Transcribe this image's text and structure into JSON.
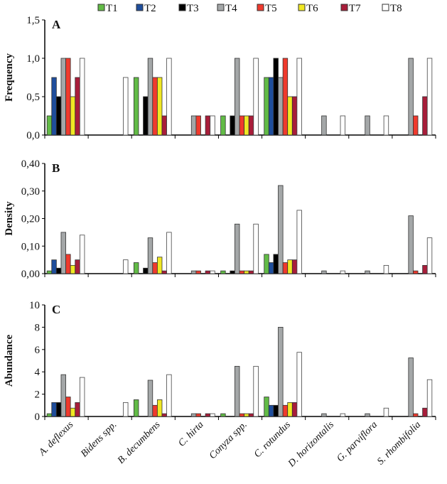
{
  "chart_data": {
    "type": "bar",
    "categories": [
      "A. deflexus",
      "Bidens spp.",
      "B. decumbens",
      "C. hirta",
      "Conyza spp.",
      "C. rotundus",
      "D. horizontalis",
      "G. parviflora",
      "S. rhombifolia"
    ],
    "legend": {
      "placement": "top",
      "entries": [
        "T1",
        "T2",
        "T3",
        "T4",
        "T5",
        "T6",
        "T7",
        "T8"
      ],
      "colors": [
        "#62bb46",
        "#1f4e9c",
        "#000000",
        "#a4a7a8",
        "#ef3a2d",
        "#f0e823",
        "#a81d3a",
        "#ffffff"
      ]
    },
    "panels": [
      {
        "label": "A",
        "ylabel": "Frequency",
        "ylim": [
          0,
          1.5
        ],
        "yticks": [
          "0,0",
          "0,5",
          "1,0",
          "1,5"
        ],
        "ytick_values": [
          0,
          0.5,
          1.0,
          1.5
        ],
        "series": [
          {
            "name": "T1",
            "values": [
              0.25,
              0,
              0.75,
              0,
              0.25,
              0.75,
              0,
              0,
              0
            ]
          },
          {
            "name": "T2",
            "values": [
              0.75,
              0,
              0,
              0,
              0,
              0.75,
              0,
              0,
              0
            ]
          },
          {
            "name": "T3",
            "values": [
              0.5,
              0,
              0.5,
              0,
              0.25,
              1.0,
              0,
              0,
              0
            ]
          },
          {
            "name": "T4",
            "values": [
              1.0,
              0,
              1.0,
              0.25,
              1.0,
              0.75,
              0.25,
              0.25,
              1.0
            ]
          },
          {
            "name": "T5",
            "values": [
              1.0,
              0,
              0.75,
              0.25,
              0.25,
              1.0,
              0,
              0,
              0.25
            ]
          },
          {
            "name": "T6",
            "values": [
              0.5,
              0,
              0.75,
              0,
              0.25,
              0.5,
              0,
              0,
              0
            ]
          },
          {
            "name": "T7",
            "values": [
              0.75,
              0,
              0.25,
              0.25,
              0.25,
              0.5,
              0,
              0,
              0.5
            ]
          },
          {
            "name": "T8",
            "values": [
              1.0,
              0.75,
              1.0,
              0.25,
              1.0,
              1.0,
              0.25,
              0.25,
              1.0
            ]
          }
        ]
      },
      {
        "label": "B",
        "ylabel": "Density",
        "ylim": [
          0,
          0.4
        ],
        "yticks": [
          "0,00",
          "0,10",
          "0,20",
          "0,30",
          "0,40"
        ],
        "ytick_values": [
          0,
          0.1,
          0.2,
          0.3,
          0.4
        ],
        "series": [
          {
            "name": "T1",
            "values": [
              0.01,
              0,
              0.04,
              0,
              0.01,
              0.07,
              0,
              0,
              0
            ]
          },
          {
            "name": "T2",
            "values": [
              0.05,
              0,
              0,
              0,
              0,
              0.04,
              0,
              0,
              0
            ]
          },
          {
            "name": "T3",
            "values": [
              0.02,
              0,
              0.02,
              0,
              0.01,
              0.07,
              0,
              0,
              0
            ]
          },
          {
            "name": "T4",
            "values": [
              0.15,
              0,
              0.13,
              0.01,
              0.18,
              0.32,
              0.01,
              0.01,
              0.21
            ]
          },
          {
            "name": "T5",
            "values": [
              0.07,
              0,
              0.04,
              0.01,
              0.01,
              0.04,
              0,
              0,
              0.01
            ]
          },
          {
            "name": "T6",
            "values": [
              0.03,
              0,
              0.06,
              0,
              0.01,
              0.05,
              0,
              0,
              0
            ]
          },
          {
            "name": "T7",
            "values": [
              0.05,
              0,
              0.01,
              0.01,
              0.01,
              0.05,
              0,
              0,
              0.03
            ]
          },
          {
            "name": "T8",
            "values": [
              0.14,
              0.05,
              0.15,
              0.01,
              0.18,
              0.23,
              0.01,
              0.03,
              0.13
            ]
          }
        ]
      },
      {
        "label": "C",
        "ylabel": "Abundance",
        "ylim": [
          0,
          10
        ],
        "yticks": [
          "0",
          "2",
          "4",
          "6",
          "8",
          "10"
        ],
        "ytick_values": [
          0,
          2,
          4,
          6,
          8,
          10
        ],
        "series": [
          {
            "name": "T1",
            "values": [
              0.25,
              0,
              1.5,
              0,
              0.25,
              1.75,
              0,
              0,
              0
            ]
          },
          {
            "name": "T2",
            "values": [
              1.25,
              0,
              0,
              0,
              0,
              1.0,
              0,
              0,
              0
            ]
          },
          {
            "name": "T3",
            "values": [
              1.25,
              0,
              0,
              0,
              0,
              1.0,
              0,
              0,
              0
            ]
          },
          {
            "name": "T4",
            "values": [
              3.75,
              0,
              3.25,
              0.25,
              4.5,
              8.0,
              0.25,
              0.25,
              5.25
            ]
          },
          {
            "name": "T5",
            "values": [
              1.75,
              0,
              1.0,
              0.25,
              0.25,
              1.0,
              0,
              0,
              0.25
            ]
          },
          {
            "name": "T6",
            "values": [
              0.75,
              0,
              1.5,
              0,
              0.25,
              1.25,
              0,
              0,
              0
            ]
          },
          {
            "name": "T7",
            "values": [
              1.25,
              0,
              0.25,
              0.25,
              0.25,
              1.25,
              0,
              0,
              0.75
            ]
          },
          {
            "name": "T8",
            "values": [
              3.5,
              1.25,
              3.75,
              0.25,
              4.5,
              5.75,
              0.25,
              0.75,
              3.3
            ]
          }
        ]
      }
    ]
  }
}
